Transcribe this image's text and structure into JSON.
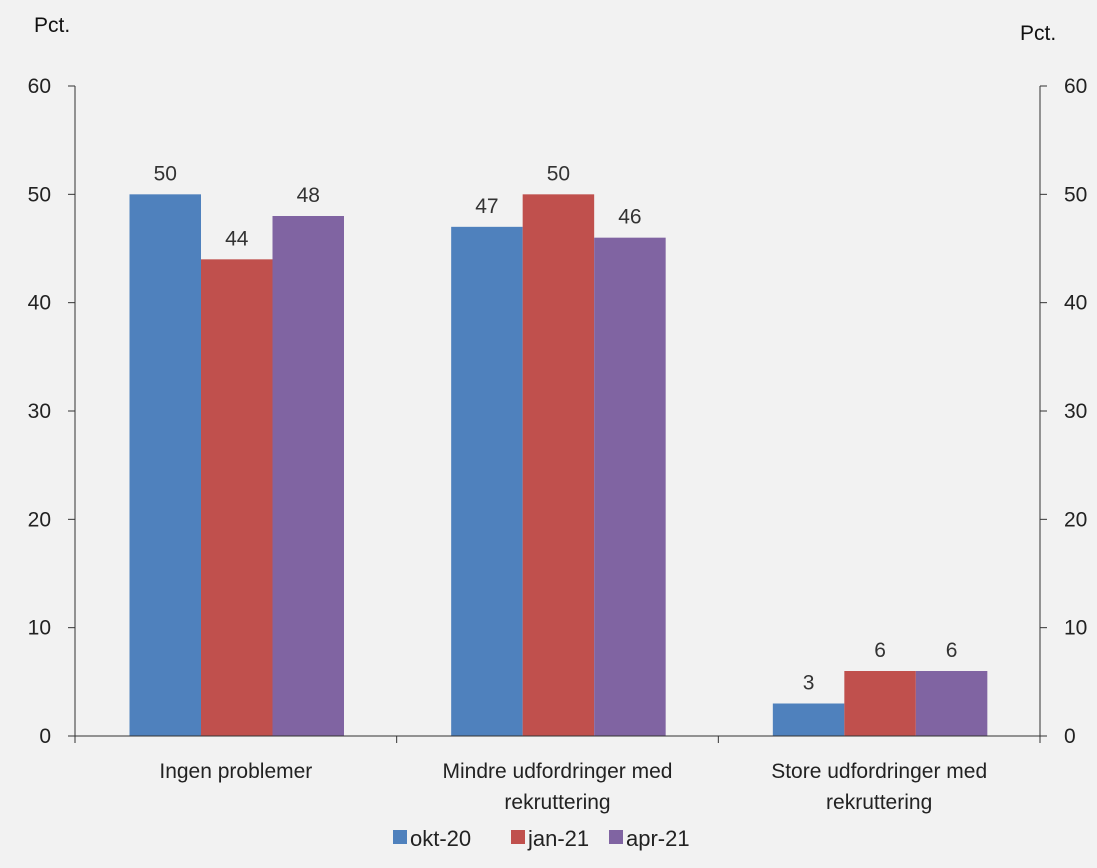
{
  "chart_data": {
    "type": "bar",
    "y_unit_left": "Pct.",
    "y_unit_right": "Pct.",
    "ylim": [
      0,
      60
    ],
    "yticks": [
      0,
      10,
      20,
      30,
      40,
      50,
      60
    ],
    "grid": false,
    "legend_position": "bottom",
    "categories": [
      [
        "Ingen problemer"
      ],
      [
        "Mindre udfordringer med",
        "rekruttering"
      ],
      [
        "Store udfordringer med",
        "rekruttering"
      ]
    ],
    "series": [
      {
        "name": "okt-20",
        "color": "#4f81bd",
        "values": [
          50,
          47,
          3
        ],
        "data_labels": [
          "50",
          "47",
          "3"
        ]
      },
      {
        "name": "jan-21",
        "color": "#c0504d",
        "values": [
          44,
          50,
          6
        ],
        "data_labels": [
          "44",
          "50",
          "6"
        ]
      },
      {
        "name": "apr-21",
        "color": "#8064a2",
        "values": [
          48,
          46,
          6
        ],
        "data_labels": [
          "48",
          "46",
          "6"
        ]
      }
    ]
  }
}
